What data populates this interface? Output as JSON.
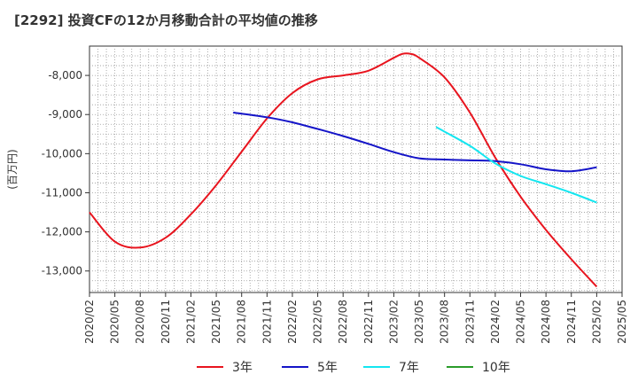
{
  "title": "[2292]  投資CFの12か月移動合計の平均値の推移",
  "chart_data": {
    "type": "line",
    "title": "[2292]  投資CFの12か月移動合計の平均値の推移",
    "ylabel": "(百万円)",
    "xlabel": "",
    "x_ticks": [
      "2020/02",
      "2020/05",
      "2020/08",
      "2020/11",
      "2021/02",
      "2021/05",
      "2021/08",
      "2021/11",
      "2022/02",
      "2022/05",
      "2022/08",
      "2022/11",
      "2023/02",
      "2023/05",
      "2023/08",
      "2023/11",
      "2024/02",
      "2024/05",
      "2024/08",
      "2024/11",
      "2025/02",
      "2025/05"
    ],
    "y_ticks": [
      -8000,
      -9000,
      -10000,
      -11000,
      -12000,
      -13000
    ],
    "y_tick_labels": [
      "-8,000",
      "-9,000",
      "-10,000",
      "-11,000",
      "-12,000",
      "-13,000"
    ],
    "ylim": [
      -13550,
      -7250
    ],
    "xlim": [
      "2020/02",
      "2025/05"
    ],
    "grid": true,
    "legend_position": "bottom",
    "series": [
      {
        "name": "3年",
        "color": "#e8141e",
        "x": [
          "2020/02",
          "2020/05",
          "2020/08",
          "2020/11",
          "2021/02",
          "2021/05",
          "2021/08",
          "2021/11",
          "2022/02",
          "2022/05",
          "2022/08",
          "2022/11",
          "2023/02",
          "2023/03",
          "2023/04",
          "2023/05",
          "2023/08",
          "2023/11",
          "2024/02",
          "2024/05",
          "2024/08",
          "2024/11",
          "2025/02"
        ],
        "values": [
          -11500,
          -12250,
          -12400,
          -12150,
          -11550,
          -10800,
          -9950,
          -9100,
          -8450,
          -8100,
          -8000,
          -7880,
          -7550,
          -7450,
          -7450,
          -7550,
          -8050,
          -8950,
          -10100,
          -11100,
          -11950,
          -12700,
          -13400
        ]
      },
      {
        "name": "5年",
        "color": "#1414c8",
        "x": [
          "2021/07",
          "2021/11",
          "2022/02",
          "2022/05",
          "2022/08",
          "2022/11",
          "2023/02",
          "2023/05",
          "2023/08",
          "2023/11",
          "2024/02",
          "2024/05",
          "2024/08",
          "2024/11",
          "2025/02"
        ],
        "values": [
          -8950,
          -9070,
          -9200,
          -9370,
          -9550,
          -9750,
          -9960,
          -10120,
          -10150,
          -10170,
          -10190,
          -10270,
          -10400,
          -10450,
          -10350
        ]
      },
      {
        "name": "7年",
        "color": "#14e6f0",
        "x": [
          "2023/07",
          "2023/11",
          "2024/02",
          "2024/05",
          "2024/08",
          "2024/11",
          "2025/02"
        ],
        "values": [
          -9320,
          -9800,
          -10250,
          -10570,
          -10780,
          -11000,
          -11250
        ]
      },
      {
        "name": "10年",
        "color": "#2a9c2a",
        "x": [],
        "values": []
      }
    ]
  }
}
